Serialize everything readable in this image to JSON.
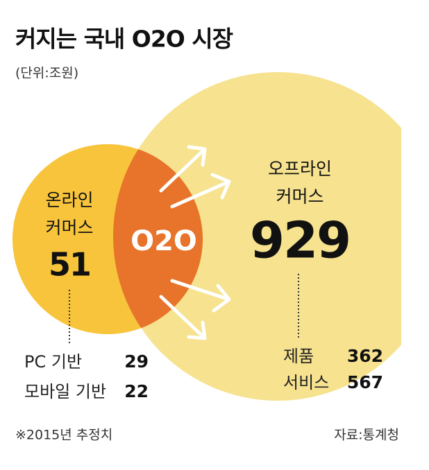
{
  "title": "커지는 국내 O2O 시장",
  "unit": "(단위:조원)",
  "online": {
    "label": [
      "온라인",
      "커머스"
    ],
    "value": 51,
    "breakdown": [
      {
        "name": "PC 기반",
        "value": 29
      },
      {
        "name": "모바일 기반",
        "value": 22
      }
    ]
  },
  "center": "O2O",
  "offline": {
    "label": [
      "오프라인",
      "커머스"
    ],
    "value": 929,
    "breakdown": [
      {
        "name": "제품",
        "value": 362
      },
      {
        "name": "서비스",
        "value": 567
      }
    ]
  },
  "note": "※2015년 추정치",
  "source": "자료:통계청"
}
